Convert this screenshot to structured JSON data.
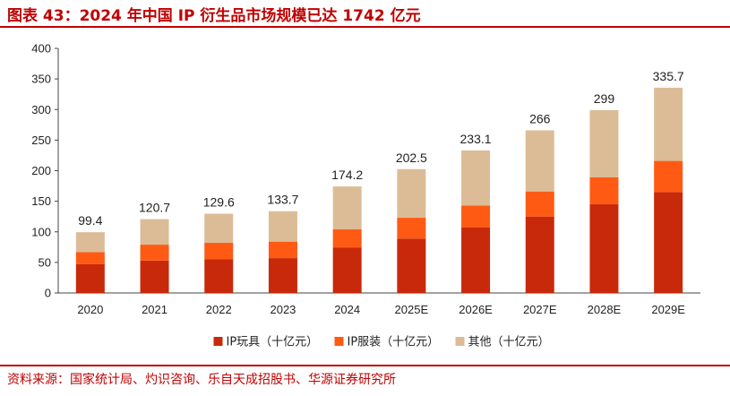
{
  "header": {
    "title": "图表 43：2024 年中国 IP 衍生品市场规模已达 1742 亿元"
  },
  "footer": {
    "source": "资料来源：国家统计局、灼识咨询、乐自天成招股书、华源证券研究所"
  },
  "colors": {
    "accent": "#c00000",
    "toys": "#c8290a",
    "apparel": "#ff5a14",
    "other": "#dcbc96"
  },
  "chart_data": {
    "type": "bar",
    "stacked": true,
    "categories": [
      "2020",
      "2021",
      "2022",
      "2023",
      "2024",
      "2025E",
      "2026E",
      "2027E",
      "2028E",
      "2029E"
    ],
    "series": [
      {
        "name": "IP玩具（十亿元）",
        "values": [
          47,
          53,
          55,
          57,
          74,
          89,
          107,
          125,
          145,
          165
        ]
      },
      {
        "name": "IP服装（十亿元）",
        "values": [
          20,
          26,
          27,
          27,
          30,
          34,
          36,
          41,
          44,
          51
        ]
      },
      {
        "name": "其他（十亿元）",
        "values": [
          32.4,
          41.7,
          47.6,
          49.7,
          70.2,
          79.5,
          90.1,
          100,
          110,
          119.7
        ]
      }
    ],
    "totals": [
      "99.4",
      "120.7",
      "129.6",
      "133.7",
      "174.2",
      "202.5",
      "233.1",
      "266",
      "299",
      "335.7"
    ],
    "yticks": [
      "0",
      "50",
      "100",
      "150",
      "200",
      "250",
      "300",
      "350",
      "400"
    ],
    "ylim": [
      0,
      400
    ],
    "grid": false,
    "legend_position": "bottom"
  }
}
